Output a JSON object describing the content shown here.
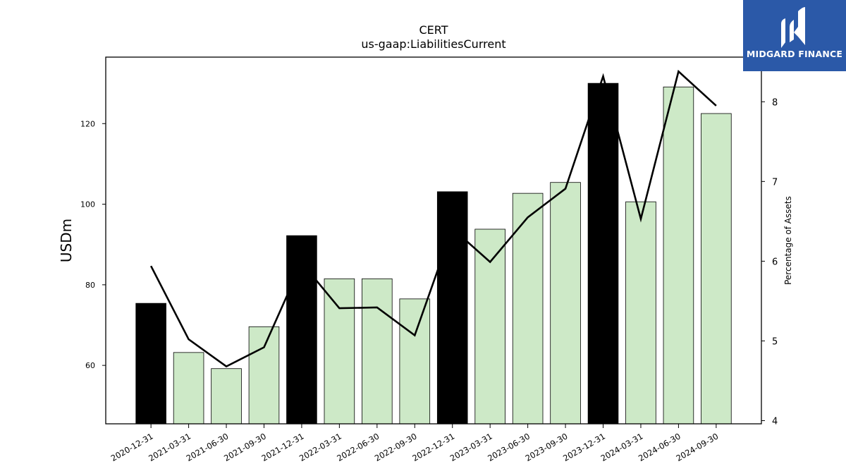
{
  "chart_data": {
    "type": "bar",
    "title": "CERT",
    "subtitle": "us-gaap:LiabilitiesCurrent",
    "ylabel": "USDm",
    "y2label": "Percentage of Assets",
    "categories": [
      "2020-12-31",
      "2021-03-31",
      "2021-06-30",
      "2021-09-30",
      "2021-12-31",
      "2022-03-31",
      "2022-06-30",
      "2022-09-30",
      "2022-12-31",
      "2023-03-31",
      "2023-06-30",
      "2023-09-30",
      "2023-12-31",
      "2024-03-31",
      "2024-06-30",
      "2024-09-30"
    ],
    "series": [
      {
        "type": "bar",
        "values": [
          75.4,
          63.2,
          59.2,
          69.6,
          92.2,
          81.5,
          81.5,
          76.5,
          103.1,
          93.8,
          102.7,
          105.4,
          130.0,
          100.6,
          129.1,
          122.5
        ],
        "highlight_fiscal_year_end": [
          true,
          false,
          false,
          false,
          true,
          false,
          false,
          false,
          true,
          false,
          false,
          false,
          true,
          false,
          false,
          false
        ]
      },
      {
        "type": "line",
        "axis": "right",
        "values": [
          5.94,
          5.02,
          4.68,
          4.92,
          5.98,
          5.41,
          5.42,
          5.07,
          6.41,
          5.99,
          6.55,
          6.91,
          8.32,
          6.53,
          8.38,
          7.95
        ]
      }
    ],
    "ylim": [
      45.5,
      136.5
    ],
    "y2lim": [
      3.96,
      8.56
    ],
    "yticks": [
      60,
      80,
      100,
      120
    ],
    "y2ticks": [
      4,
      5,
      6,
      7,
      8
    ],
    "colors": {
      "highlight_bar": "#000000",
      "bar": "#cde9c7",
      "line": "#000000"
    },
    "grid": false
  },
  "logo": {
    "text": "MIDGARD FINANCE"
  }
}
